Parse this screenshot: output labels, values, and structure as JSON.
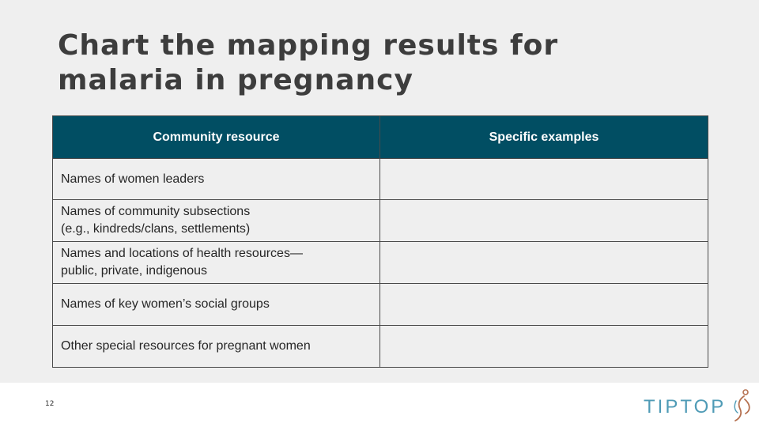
{
  "slide": {
    "title_lines": [
      "Chart the mapping results for",
      "malaria in pregnancy"
    ],
    "page_number": "12"
  },
  "table": {
    "headers": [
      "Community resource",
      "Specific examples"
    ],
    "rows": [
      {
        "resource": [
          "Names of women leaders"
        ],
        "examples": ""
      },
      {
        "resource": [
          "Names of community subsections",
          "(e.g., kindreds/clans, settlements)"
        ],
        "examples": ""
      },
      {
        "resource": [
          "Names and locations of health resources—",
          "public, private, indigenous"
        ],
        "examples": ""
      },
      {
        "resource": [
          "Names of key women’s social groups"
        ],
        "examples": ""
      },
      {
        "resource": [
          "Other special resources for pregnant women"
        ],
        "examples": ""
      }
    ]
  },
  "logo": {
    "text": "TIPTOP",
    "brand_color": "#4f9bb6",
    "accent_color": "#b5704f"
  },
  "colors": {
    "header_bg": "#014e63",
    "slide_bg": "#efefef",
    "title": "#3d3d3d"
  }
}
